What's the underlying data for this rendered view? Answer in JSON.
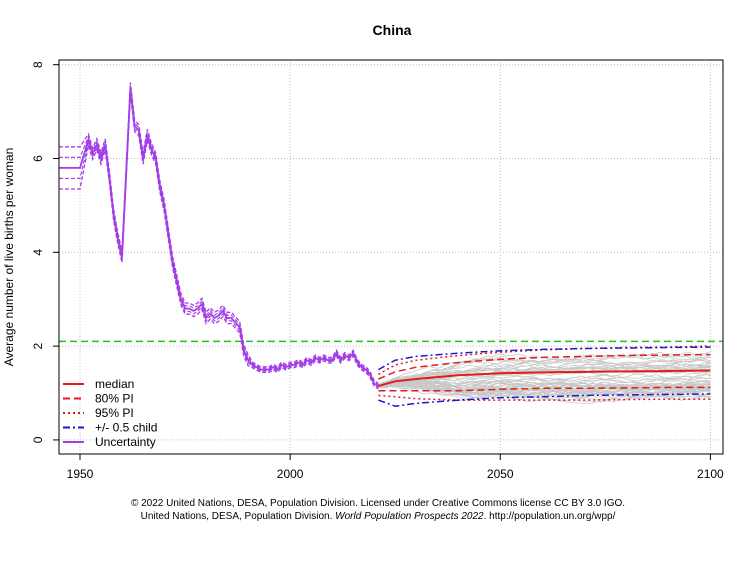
{
  "chart_data": {
    "type": "line",
    "title": "China",
    "xlabel": "",
    "ylabel": "Average number of live births per woman",
    "xlim": [
      1945,
      2103
    ],
    "ylim": [
      -0.3,
      8.1
    ],
    "x_ticks": [
      1950,
      2000,
      2050,
      2100
    ],
    "y_ticks": [
      0,
      2,
      4,
      6,
      8
    ],
    "grid": true,
    "legend_position": "bottom-left",
    "replacement_level": 2.1,
    "observed_median": {
      "x": [
        1945,
        1949,
        1950,
        1952,
        1953,
        1954,
        1955,
        1956,
        1957,
        1958,
        1959,
        1960,
        1961,
        1962,
        1963,
        1964,
        1965,
        1966,
        1967,
        1968,
        1969,
        1970,
        1971,
        1972,
        1973,
        1974,
        1975,
        1976,
        1977,
        1978,
        1979,
        1980,
        1981,
        1982,
        1983,
        1984,
        1985,
        1986,
        1987,
        1988,
        1989,
        1990,
        1991,
        1992,
        1993,
        1994,
        1995,
        1996,
        1997,
        1998,
        1999,
        2000,
        2001,
        2002,
        2003,
        2004,
        2005,
        2006,
        2007,
        2008,
        2009,
        2010,
        2011,
        2012,
        2013,
        2014,
        2015,
        2016,
        2017,
        2018,
        2019,
        2020,
        2021
      ],
      "y": [
        5.8,
        5.8,
        5.8,
        6.4,
        6.1,
        6.3,
        6.0,
        6.3,
        5.6,
        4.8,
        4.3,
        3.9,
        5.7,
        7.5,
        6.7,
        6.6,
        6.0,
        6.5,
        6.2,
        6.0,
        5.4,
        5.0,
        4.4,
        3.8,
        3.4,
        3.0,
        2.8,
        2.8,
        2.75,
        2.8,
        2.9,
        2.6,
        2.7,
        2.6,
        2.65,
        2.75,
        2.6,
        2.6,
        2.5,
        2.4,
        1.9,
        1.7,
        1.6,
        1.55,
        1.5,
        1.5,
        1.5,
        1.55,
        1.5,
        1.6,
        1.55,
        1.6,
        1.6,
        1.65,
        1.6,
        1.7,
        1.65,
        1.75,
        1.7,
        1.75,
        1.7,
        1.7,
        1.85,
        1.7,
        1.8,
        1.75,
        1.85,
        1.65,
        1.55,
        1.5,
        1.4,
        1.2,
        1.15
      ]
    },
    "projection_x": [
      2021,
      2025,
      2030,
      2040,
      2050,
      2060,
      2070,
      2080,
      2090,
      2100
    ],
    "median": [
      1.15,
      1.25,
      1.3,
      1.38,
      1.42,
      1.44,
      1.45,
      1.46,
      1.47,
      1.48
    ],
    "pi80_upper": [
      1.3,
      1.45,
      1.55,
      1.65,
      1.72,
      1.76,
      1.78,
      1.8,
      1.81,
      1.82
    ],
    "pi80_lower": [
      1.05,
      1.05,
      1.05,
      1.05,
      1.08,
      1.1,
      1.1,
      1.11,
      1.12,
      1.12
    ],
    "pi95_upper": [
      1.4,
      1.6,
      1.7,
      1.8,
      1.87,
      1.92,
      1.95,
      1.97,
      1.98,
      2.0
    ],
    "pi95_lower": [
      0.95,
      0.92,
      0.88,
      0.85,
      0.85,
      0.85,
      0.85,
      0.86,
      0.87,
      0.87
    ],
    "half_child_upper": [
      1.5,
      1.7,
      1.78,
      1.85,
      1.9,
      1.93,
      1.95,
      1.96,
      1.97,
      1.98
    ],
    "half_child_lower": [
      0.85,
      0.72,
      0.78,
      0.85,
      0.9,
      0.92,
      0.95,
      0.96,
      0.97,
      0.98
    ],
    "series": [
      {
        "name": "median",
        "color": "#e41a1c",
        "style": "solid"
      },
      {
        "name": "80% PI",
        "color": "#e41a1c",
        "style": "dashed"
      },
      {
        "name": "95% PI",
        "color": "#e41a1c",
        "style": "dotted"
      },
      {
        "name": "+/- 0.5 child",
        "color": "#1a1ad4",
        "style": "dashdot"
      },
      {
        "name": "Uncertainty",
        "color": "#a23de8",
        "style": "solid"
      }
    ],
    "colors": {
      "replacement": "#22c322",
      "trajectories": "#c8c8c8",
      "grid": "#bdbdbd"
    }
  },
  "credits": {
    "line1": "© 2022 United Nations, DESA, Population Division. Licensed under Creative Commons license CC BY 3.0 IGO.",
    "line2_prefix": "United Nations, DESA, Population Division. ",
    "line2_italic": "World Population Prospects 2022",
    "line2_suffix": ". http://population.un.org/wpp/"
  }
}
